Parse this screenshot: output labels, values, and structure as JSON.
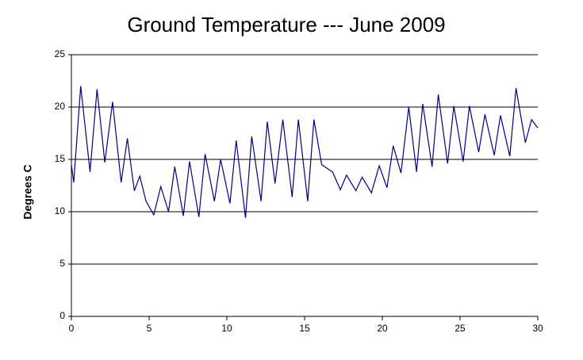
{
  "chart_data": {
    "type": "line",
    "title": "Ground Temperature --- June 2009",
    "y_label": "Degrees C",
    "xlim": [
      0,
      30
    ],
    "xticks": [
      0,
      5,
      10,
      15,
      20,
      25,
      30
    ],
    "ylim": [
      0,
      25
    ],
    "yticks": [
      0,
      5,
      10,
      15,
      20,
      25
    ],
    "grid": true,
    "x": [
      0,
      0.15,
      0.6,
      1.2,
      1.65,
      2.15,
      2.65,
      3.2,
      3.6,
      4.05,
      4.4,
      4.8,
      5.3,
      5.75,
      6.25,
      6.65,
      7.2,
      7.6,
      8.2,
      8.6,
      9.2,
      9.6,
      10.2,
      10.6,
      11.2,
      11.6,
      12.2,
      12.6,
      13.1,
      13.6,
      14.2,
      14.6,
      15.2,
      15.6,
      16.1,
      16.8,
      17.3,
      17.7,
      18.3,
      18.7,
      19.3,
      19.8,
      20.3,
      20.7,
      21.2,
      21.7,
      22.2,
      22.6,
      23.2,
      23.6,
      24.2,
      24.6,
      25.2,
      25.6,
      26.2,
      26.6,
      27.2,
      27.6,
      28.2,
      28.6,
      29.2,
      29.6,
      30
    ],
    "series": [
      {
        "name": "Ground Temperature",
        "color": "#000080",
        "values": [
          14.5,
          12.8,
          22,
          13.8,
          21.7,
          14.7,
          20.5,
          12.8,
          17,
          12,
          13.4,
          11,
          9.7,
          12.4,
          10,
          14.3,
          9.6,
          14.8,
          9.5,
          15.5,
          11,
          15,
          10.8,
          16.8,
          9.4,
          17.2,
          11,
          18.6,
          12.7,
          18.8,
          11.4,
          18.8,
          11,
          18.8,
          14.5,
          13.8,
          12.1,
          13.5,
          12,
          13.3,
          11.8,
          14.4,
          12.3,
          16.3,
          13.7,
          20,
          13.8,
          20.3,
          14.3,
          21.2,
          14.6,
          20.1,
          14.8,
          20.1,
          15.7,
          19.3,
          15.4,
          19.2,
          15.3,
          21.8,
          16.6,
          18.8,
          18
        ]
      }
    ]
  }
}
